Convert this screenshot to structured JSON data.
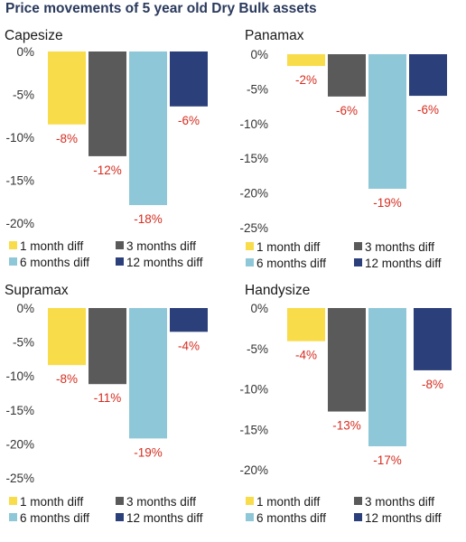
{
  "title": "Price movements of 5 year old Dry Bulk assets",
  "colors": {
    "1 month diff": "#f9dc4a",
    "3 months diff": "#5a5a5a",
    "6 months diff": "#8ec8d8",
    "12 months diff": "#2b3f7a",
    "label": "#d62d20",
    "title": "#2a3a5c"
  },
  "chart_data": [
    {
      "type": "bar",
      "title": "Capesize",
      "categories": [
        "1 month diff",
        "3 months diff",
        "6 months diff",
        "12 months diff"
      ],
      "values": [
        -8.5,
        -12.2,
        -17.9,
        -6.4
      ],
      "data_labels": [
        "-8%",
        "-12%",
        "-18%",
        "-6%"
      ],
      "ylim": [
        -20,
        0
      ],
      "yticks": [
        0,
        -5,
        -10,
        -15,
        -20
      ],
      "ytick_labels": [
        "0%",
        "-5%",
        "-10%",
        "-15%",
        "-20%"
      ],
      "legend": [
        "1 month diff",
        "3 months diff",
        "6 months diff",
        "12 months diff"
      ],
      "legend_position": "bottom",
      "grid": false
    },
    {
      "type": "bar",
      "title": "Panamax",
      "categories": [
        "1 month diff",
        "3 months diff",
        "6 months diff",
        "12 months diff"
      ],
      "values": [
        -1.7,
        -6.1,
        -19.4,
        -6.0
      ],
      "data_labels": [
        "-2%",
        "-6%",
        "-19%",
        "-6%"
      ],
      "ylim": [
        -25,
        0
      ],
      "yticks": [
        0,
        -5,
        -10,
        -15,
        -20,
        -25
      ],
      "ytick_labels": [
        "0%",
        "-5%",
        "-10%",
        "-15%",
        "-20%",
        "-25%"
      ],
      "legend": [
        "1 month diff",
        "3 months diff",
        "6 months diff",
        "12 months diff"
      ],
      "legend_position": "bottom",
      "grid": false
    },
    {
      "type": "bar",
      "title": "Supramax",
      "categories": [
        "1 month diff",
        "3 months diff",
        "6 months diff",
        "12 months diff"
      ],
      "values": [
        -8.4,
        -11.2,
        -19.2,
        -3.5
      ],
      "data_labels": [
        "-8%",
        "-11%",
        "-19%",
        "-4%"
      ],
      "ylim": [
        -25,
        0
      ],
      "yticks": [
        0,
        -5,
        -10,
        -15,
        -20,
        -25
      ],
      "ytick_labels": [
        "0%",
        "-5%",
        "-10%",
        "-15%",
        "-20%",
        "-25%"
      ],
      "legend": [
        "1 month diff",
        "3 months diff",
        "6 months diff",
        "12 months diff"
      ],
      "legend_position": "bottom",
      "grid": false
    },
    {
      "type": "bar",
      "title": "Handysize",
      "categories": [
        "1 month diff",
        "3 months diff",
        "6 months diff",
        "12 months diff"
      ],
      "values": [
        -4.1,
        -12.8,
        -17.1,
        -7.7
      ],
      "data_labels": [
        "-4%",
        "-13%",
        "-17%",
        "-8%"
      ],
      "ylim": [
        -20,
        0
      ],
      "yticks": [
        0,
        -5,
        -10,
        -15,
        -20
      ],
      "ytick_labels": [
        "0%",
        "-5%",
        "-10%",
        "-15%",
        "-20%"
      ],
      "legend": [
        "1 month diff",
        "3 months diff",
        "6 months diff",
        "12 months diff"
      ],
      "legend_position": "bottom",
      "grid": false
    }
  ]
}
